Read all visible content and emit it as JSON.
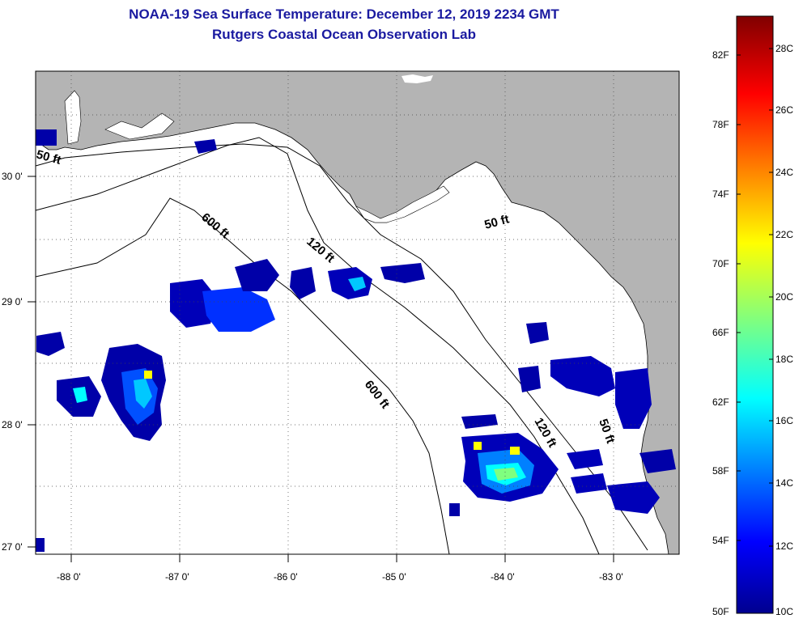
{
  "header": {
    "title": "NOAA-19 Sea Surface Temperature:  December 12, 2019 2234 GMT",
    "subtitle": "Rutgers Coastal Ocean Observation Lab"
  },
  "map": {
    "region": "Gulf of Mexico - Florida Big Bend",
    "lon_labels": [
      "-88 0'",
      "-87 0'",
      "-86 0'",
      "-85 0'",
      "-84 0'",
      "-83 0'"
    ],
    "lat_labels": [
      "30 0'",
      "29 0'",
      "28 0'",
      "27 0'"
    ],
    "contours": [
      "50 ft",
      "600 ft",
      "120 ft",
      "50 ft",
      "600 ft",
      "120 ft",
      "50 ft"
    ],
    "colors": {
      "land": "#b4b4b4",
      "ocean": "#ffffff",
      "frame": "#000000"
    }
  },
  "colorbar": {
    "fahrenheit_labels": [
      "82F",
      "78F",
      "74F",
      "70F",
      "66F",
      "62F",
      "58F",
      "54F",
      "50F"
    ],
    "celsius_labels": [
      "28C",
      "26C",
      "24C",
      "22C",
      "20C",
      "18C",
      "16C",
      "14C",
      "12C",
      "10C"
    ],
    "min_c": 10,
    "max_c": 29.5,
    "colormap": "jet"
  }
}
